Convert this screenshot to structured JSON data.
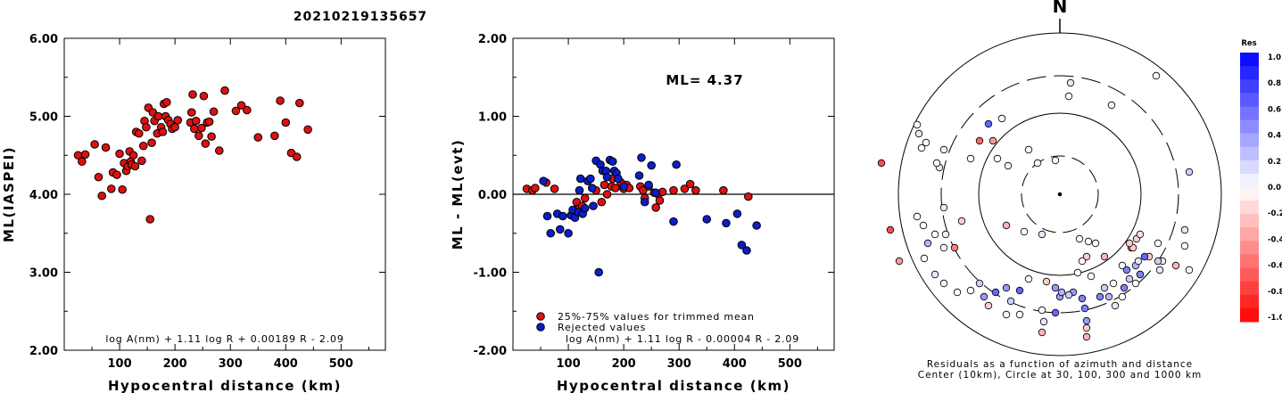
{
  "title": "20210219135657",
  "chart_data": [
    {
      "type": "scatter",
      "ylabel": "ML(IASPEI)",
      "xlabel": "Hypocentral distance (km)",
      "xlim": [
        0,
        580
      ],
      "ylim": [
        2.0,
        6.0
      ],
      "xticks": [
        "100",
        "200",
        "300",
        "400",
        "500"
      ],
      "yticks": [
        "2.00",
        "3.00",
        "4.00",
        "5.00",
        "6.00"
      ],
      "annotation": "log A(nm) + 1.11 log R + 0.00189 R - 2.09",
      "points": [
        [
          25,
          4.5
        ],
        [
          32,
          4.42
        ],
        [
          38,
          4.51
        ],
        [
          55,
          4.64
        ],
        [
          62,
          4.22
        ],
        [
          68,
          3.98
        ],
        [
          75,
          4.6
        ],
        [
          85,
          4.07
        ],
        [
          88,
          4.28
        ],
        [
          95,
          4.25
        ],
        [
          100,
          4.52
        ],
        [
          105,
          4.06
        ],
        [
          108,
          4.4
        ],
        [
          112,
          4.3
        ],
        [
          115,
          4.36
        ],
        [
          118,
          4.55
        ],
        [
          120,
          4.42
        ],
        [
          122,
          4.38
        ],
        [
          125,
          4.5
        ],
        [
          128,
          4.36
        ],
        [
          130,
          4.8
        ],
        [
          135,
          4.78
        ],
        [
          140,
          4.43
        ],
        [
          143,
          4.62
        ],
        [
          145,
          4.94
        ],
        [
          148,
          4.86
        ],
        [
          152,
          5.11
        ],
        [
          155,
          3.68
        ],
        [
          158,
          4.66
        ],
        [
          160,
          5.05
        ],
        [
          163,
          4.94
        ],
        [
          168,
          4.78
        ],
        [
          170,
          5.0
        ],
        [
          175,
          4.86
        ],
        [
          178,
          4.8
        ],
        [
          180,
          5.16
        ],
        [
          183,
          5.0
        ],
        [
          185,
          5.18
        ],
        [
          188,
          4.95
        ],
        [
          192,
          4.9
        ],
        [
          195,
          4.84
        ],
        [
          200,
          4.86
        ],
        [
          205,
          4.95
        ],
        [
          228,
          4.92
        ],
        [
          230,
          5.05
        ],
        [
          232,
          5.28
        ],
        [
          235,
          4.84
        ],
        [
          238,
          4.94
        ],
        [
          243,
          4.75
        ],
        [
          248,
          4.85
        ],
        [
          252,
          5.26
        ],
        [
          255,
          4.65
        ],
        [
          258,
          4.92
        ],
        [
          262,
          4.93
        ],
        [
          266,
          4.74
        ],
        [
          270,
          5.06
        ],
        [
          280,
          4.56
        ],
        [
          290,
          5.33
        ],
        [
          310,
          5.07
        ],
        [
          320,
          5.14
        ],
        [
          330,
          5.08
        ],
        [
          350,
          4.73
        ],
        [
          380,
          4.75
        ],
        [
          390,
          5.2
        ],
        [
          400,
          4.92
        ],
        [
          410,
          4.53
        ],
        [
          420,
          4.48
        ],
        [
          425,
          5.17
        ],
        [
          440,
          4.83
        ]
      ]
    },
    {
      "type": "scatter",
      "ylabel": "ML - ML(evt)",
      "xlabel": "Hypocentral distance (km)",
      "xlim": [
        0,
        580
      ],
      "ylim": [
        -2.0,
        2.0
      ],
      "xticks": [
        "100",
        "200",
        "300",
        "400",
        "500"
      ],
      "yticks": [
        "-2.00",
        "-1.00",
        "0.00",
        "1.00",
        "2.00"
      ],
      "ml_text": "ML= 4.37",
      "legend": [
        "25%-75% values for trimmed mean",
        "Rejected values"
      ],
      "annotation": "log A(nm) + 1.11 log R - 0.00004 R - 2.09",
      "series": [
        {
          "name": "25%-75% values for trimmed mean",
          "color": "#dd1111",
          "points": [
            [
              25,
              0.07
            ],
            [
              35,
              0.05
            ],
            [
              40,
              0.08
            ],
            [
              60,
              0.15
            ],
            [
              75,
              0.07
            ],
            [
              110,
              -0.2
            ],
            [
              115,
              -0.1
            ],
            [
              120,
              -0.18
            ],
            [
              125,
              -0.15
            ],
            [
              130,
              -0.05
            ],
            [
              150,
              0.05
            ],
            [
              160,
              -0.1
            ],
            [
              165,
              0.12
            ],
            [
              170,
              0.0
            ],
            [
              178,
              0.1
            ],
            [
              180,
              0.2
            ],
            [
              185,
              0.08
            ],
            [
              195,
              0.15
            ],
            [
              200,
              0.07
            ],
            [
              205,
              0.12
            ],
            [
              210,
              0.08
            ],
            [
              230,
              0.1
            ],
            [
              235,
              0.05
            ],
            [
              238,
              -0.05
            ],
            [
              245,
              0.1
            ],
            [
              255,
              0.02
            ],
            [
              258,
              -0.17
            ],
            [
              262,
              0.0
            ],
            [
              265,
              -0.08
            ],
            [
              270,
              0.03
            ],
            [
              290,
              0.05
            ],
            [
              310,
              0.07
            ],
            [
              320,
              0.13
            ],
            [
              330,
              0.05
            ],
            [
              380,
              0.05
            ],
            [
              425,
              -0.03
            ]
          ]
        },
        {
          "name": "Rejected values",
          "color": "#0a1ecc",
          "points": [
            [
              55,
              0.17
            ],
            [
              62,
              -0.28
            ],
            [
              68,
              -0.5
            ],
            [
              80,
              -0.25
            ],
            [
              85,
              -0.45
            ],
            [
              90,
              -0.28
            ],
            [
              100,
              -0.5
            ],
            [
              105,
              -0.27
            ],
            [
              108,
              -0.2
            ],
            [
              112,
              -0.3
            ],
            [
              118,
              -0.23
            ],
            [
              120,
              0.05
            ],
            [
              122,
              0.2
            ],
            [
              126,
              -0.25
            ],
            [
              130,
              -0.18
            ],
            [
              135,
              0.17
            ],
            [
              140,
              0.2
            ],
            [
              143,
              0.08
            ],
            [
              145,
              -0.15
            ],
            [
              150,
              0.43
            ],
            [
              155,
              -1.0
            ],
            [
              158,
              0.38
            ],
            [
              162,
              0.3
            ],
            [
              168,
              0.3
            ],
            [
              170,
              0.22
            ],
            [
              175,
              0.44
            ],
            [
              180,
              0.42
            ],
            [
              183,
              0.3
            ],
            [
              187,
              0.27
            ],
            [
              190,
              0.2
            ],
            [
              200,
              0.1
            ],
            [
              228,
              0.24
            ],
            [
              232,
              0.47
            ],
            [
              238,
              -0.1
            ],
            [
              245,
              0.12
            ],
            [
              250,
              0.37
            ],
            [
              258,
              0.02
            ],
            [
              290,
              -0.35
            ],
            [
              295,
              0.38
            ],
            [
              350,
              -0.32
            ],
            [
              385,
              -0.37
            ],
            [
              405,
              -0.25
            ],
            [
              413,
              -0.65
            ],
            [
              422,
              -0.72
            ],
            [
              440,
              -0.4
            ]
          ]
        }
      ]
    },
    {
      "type": "scatter",
      "kind": "polar-residuals",
      "north_label": "N",
      "caption_line1": "Residuals as a function of azimuth and distance",
      "caption_line2": "Center (10km), Circle at 30, 100, 300 and 1000 km",
      "colorbar": {
        "title": "Res",
        "ticks": [
          "1.0",
          "0.8",
          "0.6",
          "0.4",
          "0.2",
          "0.0",
          "-0.2",
          "-0.4",
          "-0.6",
          "-0.8",
          "-1.0"
        ],
        "max_color": "#0000ff",
        "min_color": "#ff0000"
      },
      "points": [
        [
          -130,
          50,
          0.05
        ],
        [
          -150,
          58,
          0.0
        ],
        [
          -158,
          68,
          0.1
        ],
        [
          -160,
          78,
          0.0
        ],
        [
          -135,
          30,
          -0.1
        ],
        [
          -138,
          35,
          0.0
        ],
        [
          -100,
          40,
          0.0
        ],
        [
          -58,
          32,
          0.05
        ],
        [
          -25,
          35,
          0.0
        ],
        [
          -5,
          38,
          0.0
        ],
        [
          -75,
          60,
          -0.4
        ],
        [
          -90,
          60,
          -0.6
        ],
        [
          -80,
          79,
          0.6
        ],
        [
          -65,
          85,
          -0.05
        ],
        [
          -160,
          -25,
          0.0
        ],
        [
          -153,
          -35,
          0.0
        ],
        [
          -140,
          -45,
          0.0
        ],
        [
          -148,
          -55,
          0.3
        ],
        [
          -152,
          -72,
          0.0
        ],
        [
          -118,
          -60,
          -0.5
        ],
        [
          -128,
          -45,
          0.05
        ],
        [
          -110,
          -30,
          -0.2
        ],
        [
          -130,
          -15,
          -0.1
        ],
        [
          -60,
          -35,
          -0.3
        ],
        [
          -40,
          -42,
          0.0
        ],
        [
          -20,
          -45,
          0.1
        ],
        [
          22,
          -50,
          -0.05
        ],
        [
          32,
          -53,
          0.0
        ],
        [
          30,
          -70,
          -0.2
        ],
        [
          25,
          -75,
          0.0
        ],
        [
          50,
          -70,
          -0.3
        ],
        [
          70,
          -80,
          0.0
        ],
        [
          90,
          -90,
          0.0
        ],
        [
          80,
          -60,
          -0.6
        ],
        [
          100,
          -70,
          -0.2
        ],
        [
          115,
          -75,
          -0.1
        ],
        [
          130,
          -80,
          -0.3
        ],
        [
          140,
          -58,
          0.0
        ],
        [
          145,
          -85,
          0.0
        ],
        [
          20,
          -88,
          0.0
        ],
        [
          -15,
          -98,
          -0.2
        ],
        [
          -5,
          -105,
          0.4
        ],
        [
          0,
          -115,
          0.4
        ],
        [
          -35,
          -95,
          0.0
        ],
        [
          -45,
          -108,
          0.6
        ],
        [
          -60,
          -105,
          0.4
        ],
        [
          -55,
          -120,
          0.2
        ],
        [
          -72,
          -110,
          0.6
        ],
        [
          -80,
          -125,
          -0.2
        ],
        [
          -85,
          -115,
          0.4
        ],
        [
          -90,
          -100,
          0.2
        ],
        [
          -100,
          -108,
          0.0
        ],
        [
          -115,
          -110,
          0.0
        ],
        [
          -130,
          -100,
          0.0
        ],
        [
          -140,
          -90,
          0.1
        ],
        [
          -20,
          -130,
          0.0
        ],
        [
          15,
          -110,
          0.4
        ],
        [
          25,
          -117,
          0.5
        ],
        [
          28,
          -128,
          0.5
        ],
        [
          30,
          -142,
          0.4
        ],
        [
          30,
          -150,
          -0.2
        ],
        [
          45,
          -115,
          0.5
        ],
        [
          50,
          -105,
          0.2
        ],
        [
          55,
          -115,
          0.3
        ],
        [
          60,
          -100,
          0.0
        ],
        [
          62,
          -125,
          0.1
        ],
        [
          70,
          -115,
          0.0
        ],
        [
          72,
          -105,
          0.5
        ],
        [
          78,
          -95,
          0.2
        ],
        [
          85,
          -100,
          0.0
        ],
        [
          90,
          -90,
          0.5
        ],
        [
          85,
          -80,
          0.3
        ],
        [
          88,
          -75,
          0.1
        ],
        [
          75,
          -85,
          0.5
        ],
        [
          82,
          -60,
          -0.2
        ],
        [
          78,
          -55,
          -0.2
        ],
        [
          86,
          -50,
          -0.2
        ],
        [
          90,
          -45,
          -0.1
        ],
        [
          95,
          -70,
          0.6
        ],
        [
          110,
          -55,
          0.0
        ],
        [
          110,
          -75,
          0.2
        ],
        [
          -18,
          -143,
          0.1
        ],
        [
          -20,
          -155,
          -0.3
        ],
        [
          30,
          -160,
          -0.3
        ],
        [
          -60,
          -135,
          0.0
        ],
        [
          -45,
          -135,
          0.0
        ],
        [
          -155,
          52,
          0.0
        ],
        [
          -200,
          35,
          -0.7
        ],
        [
          -190,
          -40,
          -0.7
        ],
        [
          -180,
          -75,
          -0.4
        ],
        [
          -130,
          -60,
          0.0
        ],
        [
          140,
          -40,
          0.1
        ],
        [
          145,
          25,
          0.2
        ],
        [
          -70,
          40,
          0.0
        ],
        [
          -5,
          -133,
          0.6
        ],
        [
          35,
          -92,
          0.0
        ],
        [
          40,
          -55,
          0.0
        ],
        [
          112,
          -85,
          0.1
        ],
        [
          -35,
          50,
          0.0
        ],
        [
          10,
          110,
          0.0
        ],
        [
          12,
          125,
          0.1
        ],
        [
          58,
          100,
          0.05
        ],
        [
          108,
          133,
          0.0
        ],
        [
          10,
          -113,
          0.2
        ],
        [
          2,
          -110,
          0.3
        ]
      ]
    }
  ]
}
